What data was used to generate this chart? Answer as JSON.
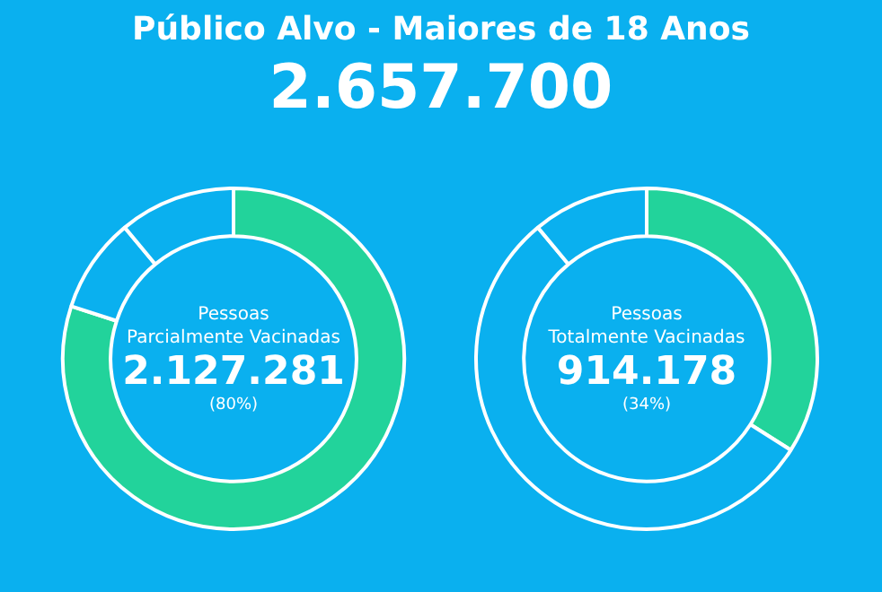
{
  "chart_data": [
    {
      "type": "other",
      "title": "Público Alvo - Maiores de 18 Anos",
      "subtitle": "2.657.700"
    },
    {
      "type": "donut",
      "categories": [
        null,
        null,
        null
      ],
      "values": [
        80,
        9,
        11
      ],
      "colors": [
        "#22d39b",
        "#0ab0ef",
        "#0ab0ef"
      ],
      "annotations": [
        "Pessoas",
        "Parcialmente Vacinadas",
        "2.127.281",
        "(80%)"
      ]
    },
    {
      "type": "donut",
      "categories": [
        null,
        null,
        null
      ],
      "values": [
        34,
        55,
        11
      ],
      "colors": [
        "#22d39b",
        "#0ab0ef",
        "#0ab0ef"
      ],
      "annotations": [
        "Pessoas",
        "Totalmente Vacinadas",
        "914.178",
        "(34%)"
      ]
    }
  ]
}
